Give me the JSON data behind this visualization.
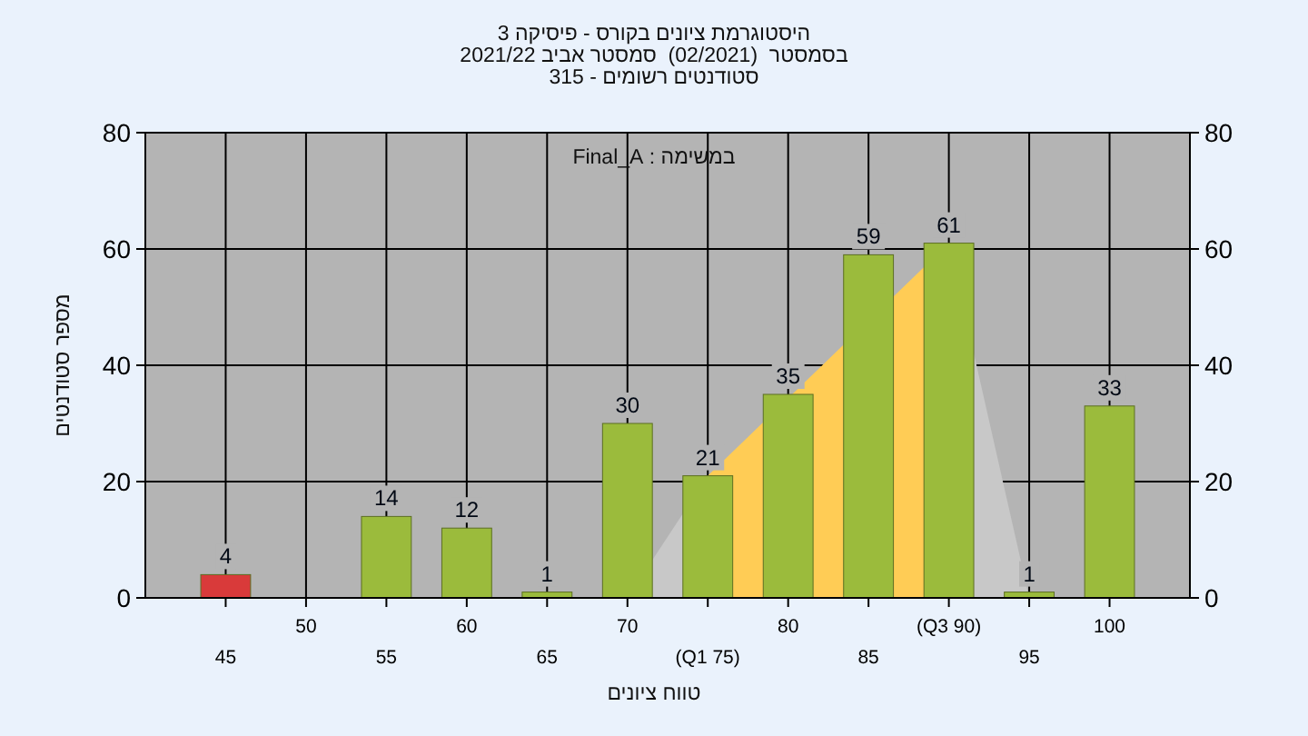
{
  "chart_data": {
    "type": "bar",
    "title": "היסטוגרמת ציונים בקורס - פיסיקה 3",
    "subtitle": "בסמסטר  (02/2021)  סמסטר אביב 2021/22\nסטודנטים רשומים - 315",
    "annotations": [
      "במשימה : Final_A"
    ],
    "xlabel": "טווח ציונים",
    "ylabel": "מספר סטודנטים",
    "categories": [
      "45",
      "50",
      "55",
      "60",
      "65",
      "70",
      "(Q1 75)",
      "80",
      "85",
      "(Q3 90)",
      "95",
      "100"
    ],
    "series": [
      {
        "type": "area",
        "color": "#c8c8c8",
        "values": [
          null,
          null,
          null,
          null,
          null,
          0,
          21,
          null,
          null,
          null,
          null,
          null
        ]
      },
      {
        "type": "area",
        "color": "#ffcc55",
        "values": [
          null,
          null,
          null,
          null,
          null,
          null,
          21,
          null,
          null,
          61,
          null,
          null
        ]
      },
      {
        "type": "area",
        "color": "#c8c8c8",
        "values": [
          null,
          null,
          null,
          null,
          null,
          null,
          null,
          null,
          null,
          61,
          0,
          null
        ]
      },
      {
        "values": [
          4,
          0,
          14,
          12,
          1,
          30,
          21,
          35,
          59,
          61,
          1,
          33
        ],
        "colors": [
          "#d93a3a",
          "#9bbb3c",
          "#9bbb3c",
          "#9bbb3c",
          "#9bbb3c",
          "#9bbb3c",
          "#9bbb3c",
          "#9bbb3c",
          "#9bbb3c",
          "#9bbb3c",
          "#9bbb3c",
          "#9bbb3c"
        ],
        "value_labels": [
          "4",
          null,
          "14",
          "12",
          "1",
          "30",
          "21",
          "35",
          "59",
          "61",
          "1",
          "33"
        ]
      }
    ],
    "ylim": [
      0,
      80
    ],
    "yticks": [
      0,
      20,
      40,
      60,
      80
    ],
    "y2lim": [
      0,
      80
    ],
    "y2ticks": [
      0,
      20,
      40,
      60,
      80
    ],
    "grid": true
  }
}
